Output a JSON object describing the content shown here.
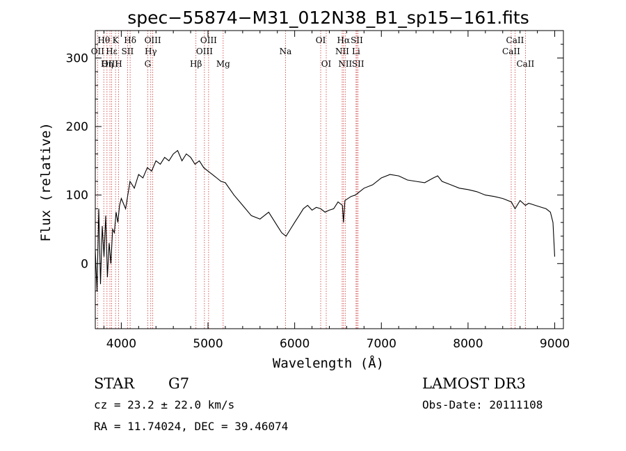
{
  "chart_data": {
    "type": "line",
    "title": "spec−55874−M31_012N38_B1_sp15−161.fits",
    "xlabel": "Wavelength (Å)",
    "ylabel": "Flux (relative)",
    "xlim": [
      3700,
      9100
    ],
    "ylim": [
      -95,
      340
    ],
    "x_ticks": [
      4000,
      5000,
      6000,
      7000,
      8000,
      9000
    ],
    "y_ticks": [
      0,
      100,
      200,
      300
    ],
    "series": [
      {
        "name": "flux",
        "x": [
          3700,
          3720,
          3740,
          3760,
          3780,
          3800,
          3820,
          3840,
          3860,
          3880,
          3900,
          3920,
          3940,
          3960,
          3980,
          4000,
          4050,
          4100,
          4150,
          4200,
          4250,
          4300,
          4350,
          4400,
          4450,
          4500,
          4550,
          4600,
          4650,
          4700,
          4750,
          4800,
          4850,
          4900,
          4950,
          5000,
          5050,
          5100,
          5150,
          5200,
          5300,
          5400,
          5500,
          5600,
          5700,
          5800,
          5850,
          5900,
          5950,
          6000,
          6050,
          6100,
          6150,
          6200,
          6250,
          6300,
          6350,
          6400,
          6450,
          6500,
          6550,
          6563,
          6580,
          6650,
          6700,
          6750,
          6800,
          6900,
          7000,
          7100,
          7200,
          7300,
          7400,
          7500,
          7600,
          7650,
          7700,
          7800,
          7900,
          8000,
          8100,
          8200,
          8300,
          8400,
          8500,
          8542,
          8600,
          8662,
          8700,
          8800,
          8900,
          8950,
          8980,
          9000
        ],
        "values": [
          20,
          -40,
          80,
          -30,
          55,
          10,
          70,
          -20,
          30,
          0,
          50,
          45,
          75,
          60,
          85,
          95,
          80,
          120,
          110,
          130,
          125,
          140,
          135,
          150,
          145,
          155,
          150,
          160,
          165,
          150,
          160,
          155,
          145,
          150,
          140,
          135,
          130,
          125,
          120,
          118,
          100,
          85,
          70,
          65,
          75,
          55,
          45,
          40,
          50,
          60,
          70,
          80,
          85,
          78,
          82,
          80,
          75,
          78,
          80,
          90,
          85,
          60,
          92,
          98,
          100,
          105,
          110,
          115,
          125,
          130,
          128,
          122,
          120,
          118,
          125,
          128,
          120,
          115,
          110,
          108,
          105,
          100,
          98,
          95,
          90,
          80,
          92,
          85,
          88,
          84,
          80,
          75,
          60,
          10
        ]
      }
    ],
    "annotations": [
      {
        "label": "Hθ",
        "x": 3798,
        "row": 1
      },
      {
        "label": "OII",
        "x": 3727,
        "row": 2
      },
      {
        "label": "OIII",
        "x": 3869,
        "row": 3
      },
      {
        "label": "K",
        "x": 3934,
        "row": 1
      },
      {
        "label": "Hε",
        "x": 3889,
        "row": 2
      },
      {
        "label": "Hη",
        "x": 3835,
        "row": 3
      },
      {
        "label": "Hδ",
        "x": 4102,
        "row": 1
      },
      {
        "label": "SII",
        "x": 4072,
        "row": 2
      },
      {
        "label": "H",
        "x": 3969,
        "row": 3
      },
      {
        "label": "OIII",
        "x": 4363,
        "row": 1
      },
      {
        "label": "Hγ",
        "x": 4340,
        "row": 2
      },
      {
        "label": "G",
        "x": 4305,
        "row": 3
      },
      {
        "label": "OIII",
        "x": 5007,
        "row": 1
      },
      {
        "label": "OIII",
        "x": 4959,
        "row": 2
      },
      {
        "label": "Hβ",
        "x": 4861,
        "row": 3
      },
      {
        "label": "Mg",
        "x": 5175,
        "row": 3
      },
      {
        "label": "Na",
        "x": 5894,
        "row": 2
      },
      {
        "label": "OI",
        "x": 6300,
        "row": 1
      },
      {
        "label": "OI",
        "x": 6364,
        "row": 3
      },
      {
        "label": "Hα",
        "x": 6563,
        "row": 1
      },
      {
        "label": "NII",
        "x": 6548,
        "row": 2
      },
      {
        "label": "NII",
        "x": 6583,
        "row": 3
      },
      {
        "label": "SII",
        "x": 6717,
        "row": 1
      },
      {
        "label": "Li",
        "x": 6708,
        "row": 2
      },
      {
        "label": "SII",
        "x": 6731,
        "row": 3
      },
      {
        "label": "CaII",
        "x": 8542,
        "row": 1
      },
      {
        "label": "CaII",
        "x": 8498,
        "row": 2
      },
      {
        "label": "CaII",
        "x": 8662,
        "row": 3
      }
    ]
  },
  "info": {
    "class": "STAR",
    "subclass": "G7",
    "survey": "LAMOST DR3",
    "cz": "cz = 23.2 ± 22.0 km/s",
    "obsdate": "Obs-Date: 20111108",
    "radec": "RA =  11.74024, DEC =  39.46074"
  }
}
